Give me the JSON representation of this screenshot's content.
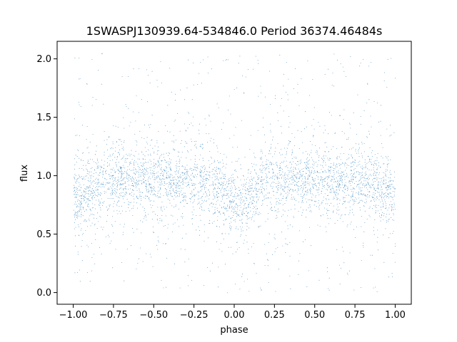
{
  "chart_data": {
    "type": "scatter",
    "title": "1SWASPJ130939.64-534846.0 Period 36374.46484s",
    "xlabel": "phase",
    "ylabel": "flux",
    "xlim": [
      -1.1,
      1.1
    ],
    "ylim": [
      -0.1,
      2.15
    ],
    "x_ticks": [
      -1.0,
      -0.75,
      -0.5,
      -0.25,
      0.0,
      0.25,
      0.5,
      0.75,
      1.0
    ],
    "x_tick_labels": [
      "−1.00",
      "−0.75",
      "−0.50",
      "−0.25",
      "0.00",
      "0.25",
      "0.50",
      "0.75",
      "1.00"
    ],
    "y_ticks": [
      0.0,
      0.5,
      1.0,
      1.5,
      2.0
    ],
    "y_tick_labels": [
      "0.0",
      "0.5",
      "1.0",
      "1.5",
      "2.0"
    ],
    "grid": false,
    "legend": "none",
    "marker_color": "#1f77b4",
    "series": [
      {
        "phase_range": [
          -1.0,
          1.0
        ],
        "median_flux_curve": {
          "phase": [
            -1.0,
            -0.95,
            -0.9,
            -0.8,
            -0.7,
            -0.6,
            -0.5,
            -0.4,
            -0.3,
            -0.2,
            -0.1,
            -0.05,
            0.0,
            0.05,
            0.1,
            0.15,
            0.2,
            0.3,
            0.4,
            0.5,
            0.6,
            0.7,
            0.8,
            0.9,
            0.95,
            1.0
          ],
          "flux": [
            0.78,
            0.82,
            0.88,
            0.95,
            0.98,
            0.97,
            0.97,
            0.97,
            0.96,
            0.95,
            0.9,
            0.84,
            0.76,
            0.72,
            0.82,
            0.92,
            0.96,
            0.97,
            0.97,
            0.96,
            0.96,
            0.96,
            0.95,
            0.9,
            0.86,
            0.78
          ]
        },
        "flux_min": 0.0,
        "flux_max": 2.05,
        "approx_points": 30000
      }
    ]
  }
}
